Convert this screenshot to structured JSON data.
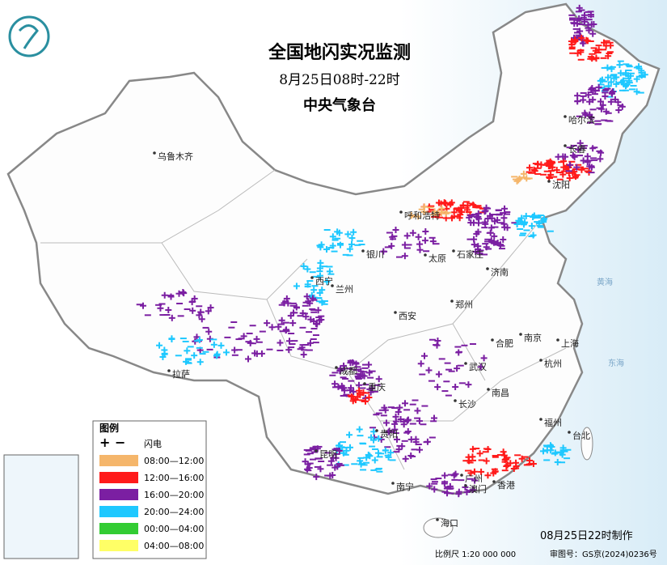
{
  "header": {
    "title": "全国地闪实况监测",
    "subtitle": "8月25日08时-22时",
    "agency": "中央气象台"
  },
  "cities": [
    "乌鲁木齐",
    "哈尔滨",
    "长春",
    "沈阳",
    "呼和浩特",
    "银川",
    "太原",
    "石家庄",
    "济南",
    "西宁",
    "兰州",
    "西安",
    "郑州",
    "南京",
    "合肥",
    "上海",
    "成都",
    "重庆",
    "武汉",
    "杭州",
    "拉萨",
    "长沙",
    "南昌",
    "福州",
    "台北",
    "贵阳",
    "昆明",
    "南宁",
    "广州",
    "香港",
    "澳门",
    "海口"
  ],
  "seas": [
    "黄海",
    "东海"
  ],
  "legend": {
    "title": "图例",
    "symbol": "+ −",
    "symbol_label": "闪电",
    "items": [
      {
        "label": "08:00—12:00",
        "color": "#f5b66b"
      },
      {
        "label": "12:00—16:00",
        "color": "#ff1a1a"
      },
      {
        "label": "16:00—20:00",
        "color": "#7b1fa2"
      },
      {
        "label": "20:00—24:00",
        "color": "#1ec8ff"
      },
      {
        "label": "00:00—04:00",
        "color": "#33cc33"
      },
      {
        "label": "04:00—08:00",
        "color": "#ffff66"
      }
    ]
  },
  "footer": {
    "made": "08月25日22时制作",
    "scale": "比例尺 1:20 000 000",
    "approval": "审图号：GS京(2024)0236号"
  }
}
